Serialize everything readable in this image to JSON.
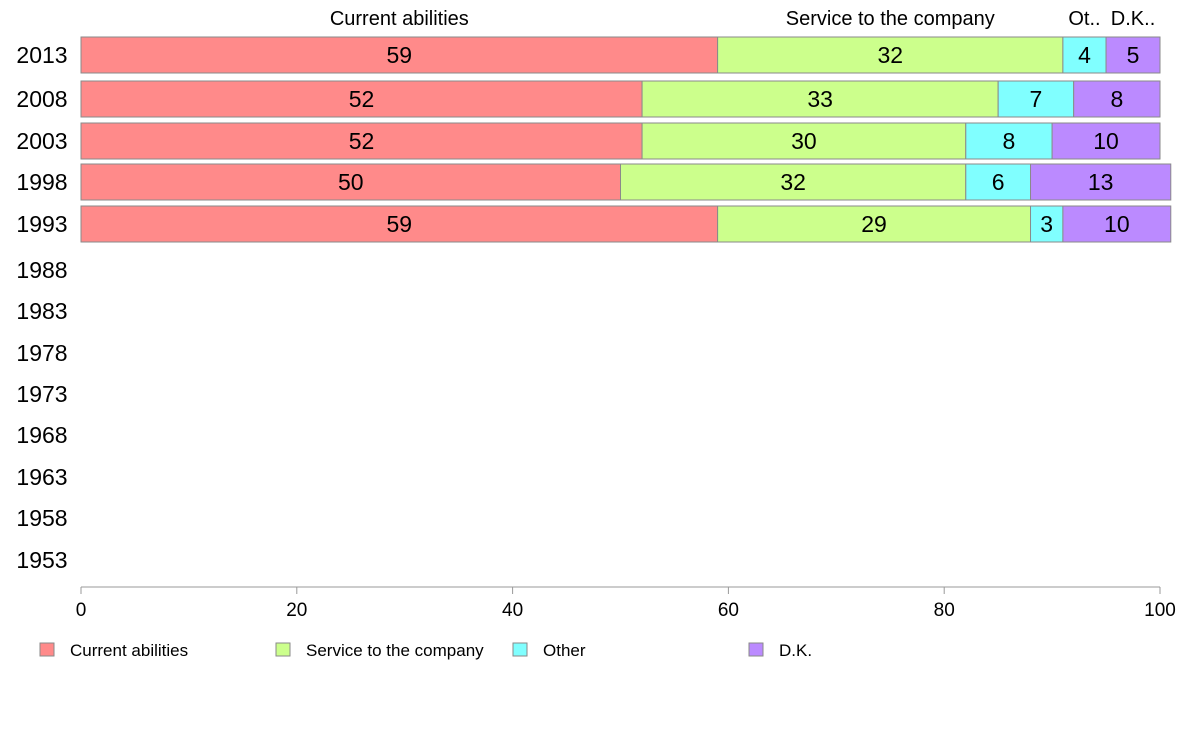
{
  "chart_data": {
    "type": "bar",
    "orientation": "horizontal",
    "stacked": true,
    "categories": [
      "2013",
      "2008",
      "2003",
      "1998",
      "1993",
      "1988",
      "1983",
      "1978",
      "1973",
      "1968",
      "1963",
      "1958",
      "1953"
    ],
    "series": [
      {
        "name": "Current abilities",
        "color": "#ff8a8a",
        "header_label": "Current abilities",
        "values": [
          59,
          52,
          52,
          50,
          59,
          null,
          null,
          null,
          null,
          null,
          null,
          null,
          null
        ]
      },
      {
        "name": "Service to the company",
        "color": "#ccff8c",
        "header_label": "Service to the company",
        "values": [
          32,
          33,
          30,
          32,
          29,
          null,
          null,
          null,
          null,
          null,
          null,
          null,
          null
        ]
      },
      {
        "name": "Other",
        "color": "#80ffff",
        "header_label": "Ot..",
        "values": [
          4,
          7,
          8,
          6,
          3,
          null,
          null,
          null,
          null,
          null,
          null,
          null,
          null
        ]
      },
      {
        "name": "D.K.",
        "color": "#bb8aff",
        "header_label": "D.K..",
        "values": [
          5,
          8,
          10,
          13,
          10,
          null,
          null,
          null,
          null,
          null,
          null,
          null,
          null
        ]
      }
    ],
    "xlim": [
      0,
      100
    ],
    "xticks": [
      0,
      20,
      40,
      60,
      80,
      100
    ],
    "title": "",
    "xlabel": "",
    "ylabel": "",
    "grid": false,
    "legend_position": "bottom"
  }
}
